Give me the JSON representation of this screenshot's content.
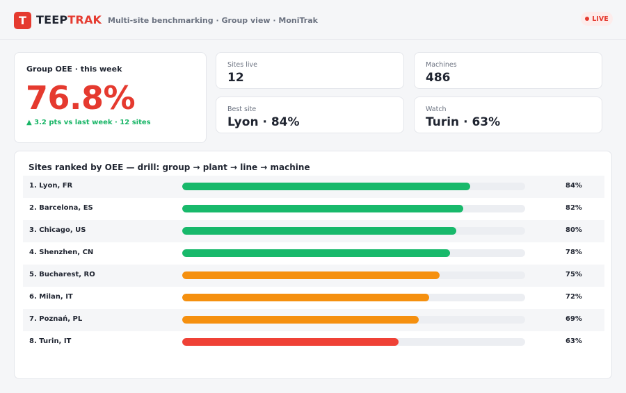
{
  "header": {
    "logo_letter": "T",
    "brand_part1": "TEEP",
    "brand_part2": "TRAK",
    "subtitle": "Multi-site benchmarking · Group view · MoniTrak",
    "live_label": "LIVE",
    "colors": {
      "accent": "#e53a2f"
    }
  },
  "oee": {
    "label": "Group OEE · this week",
    "value": "76.8%",
    "delta": "▲ 3.2 pts vs last week · 12 sites"
  },
  "kpis": [
    {
      "label": "Sites live",
      "value": "12"
    },
    {
      "label": "Machines",
      "value": "486"
    },
    {
      "label": "Best site",
      "value": "Lyon · 84%"
    },
    {
      "label": "Watch",
      "value": "Turin · 63%"
    }
  ],
  "ranking": {
    "title": "Sites ranked by OEE — drill: group → plant → line → machine",
    "colors": {
      "good": "#18b96b",
      "warn": "#f5900f",
      "bad": "#ef4136"
    },
    "sites": [
      {
        "name": "1. Lyon, FR",
        "oee": 84,
        "pct": "84%",
        "status": "good"
      },
      {
        "name": "2. Barcelona, ES",
        "oee": 82,
        "pct": "82%",
        "status": "good"
      },
      {
        "name": "3. Chicago, US",
        "oee": 80,
        "pct": "80%",
        "status": "good"
      },
      {
        "name": "4. Shenzhen, CN",
        "oee": 78,
        "pct": "78%",
        "status": "good"
      },
      {
        "name": "5. Bucharest, RO",
        "oee": 75,
        "pct": "75%",
        "status": "warn"
      },
      {
        "name": "6. Milan, IT",
        "oee": 72,
        "pct": "72%",
        "status": "warn"
      },
      {
        "name": "7. Poznań, PL",
        "oee": 69,
        "pct": "69%",
        "status": "warn"
      },
      {
        "name": "8. Turin, IT",
        "oee": 63,
        "pct": "63%",
        "status": "bad"
      }
    ]
  }
}
